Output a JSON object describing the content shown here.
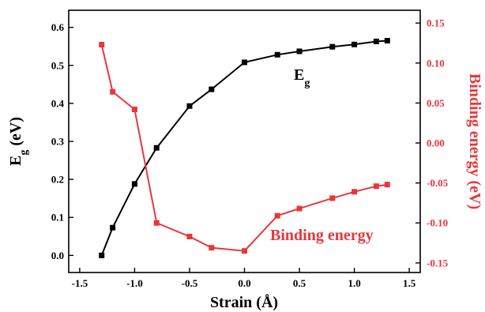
{
  "chart_data": {
    "type": "line",
    "xlabel": "Strain (Å)",
    "ylabel_left_main": "E",
    "ylabel_left_sub": "g",
    "ylabel_left_rest": " (eV)",
    "ylabel_right": "Binding energy (eV)",
    "xlim": [
      -1.6,
      1.6
    ],
    "ylim_left": [
      -0.045,
      0.645
    ],
    "ylim_right": [
      -0.162,
      0.166
    ],
    "xticks": [
      -1.5,
      -1.0,
      -0.5,
      0.0,
      0.5,
      1.0,
      1.5
    ],
    "xtick_labels": [
      "-1.5",
      "-1.0",
      "-0.5",
      "0.0",
      "0.5",
      "1.0",
      "1.5"
    ],
    "yticks_left": [
      0.0,
      0.1,
      0.2,
      0.3,
      0.4,
      0.5,
      0.6
    ],
    "ytick_labels_left": [
      "0.0",
      "0.1",
      "0.2",
      "0.3",
      "0.4",
      "0.5",
      "0.6"
    ],
    "yticks_right": [
      -0.15,
      -0.1,
      -0.05,
      0.0,
      0.05,
      0.1,
      0.15
    ],
    "ytick_labels_right": [
      "-0.15",
      "-0.10",
      "-0.05",
      "0.00",
      "0.05",
      "0.10",
      "0.15"
    ],
    "series": [
      {
        "label_main": "E",
        "label_sub": "g",
        "axis": "left",
        "color": "#000000",
        "x": [
          -1.3,
          -1.2,
          -1.0,
          -0.8,
          -0.5,
          -0.3,
          0.0,
          0.3,
          0.5,
          0.8,
          1.0,
          1.2,
          1.3
        ],
        "y": [
          0.0,
          0.073,
          0.188,
          0.283,
          0.393,
          0.437,
          0.508,
          0.528,
          0.537,
          0.549,
          0.555,
          0.563,
          0.565
        ]
      },
      {
        "label": "Binding energy",
        "axis": "right",
        "color": "#e8373a",
        "x": [
          -1.3,
          -1.2,
          -1.0,
          -0.8,
          -0.5,
          -0.3,
          0.0,
          0.3,
          0.5,
          0.8,
          1.0,
          1.2,
          1.3
        ],
        "y": [
          0.123,
          0.064,
          0.042,
          -0.1,
          -0.117,
          -0.131,
          -0.135,
          -0.091,
          -0.082,
          -0.069,
          -0.061,
          -0.054,
          -0.052
        ]
      }
    ],
    "colors": {
      "left_axis": "#000000",
      "right_axis": "#e8373a"
    }
  }
}
